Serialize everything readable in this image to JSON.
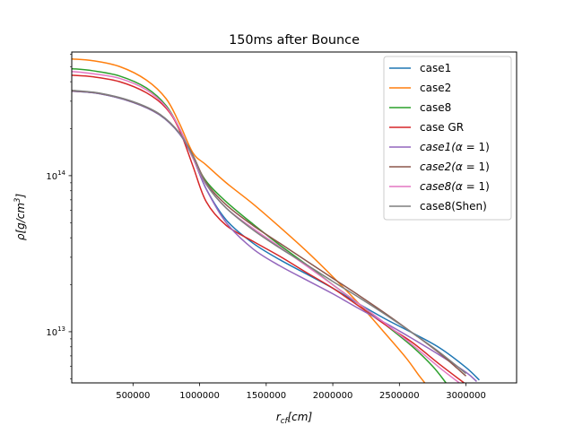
{
  "chart_data": {
    "type": "line",
    "title": "150ms after Bounce",
    "xlabel": "r_cf[cm]",
    "ylabel": "ρ[g/cm³]",
    "xlim": [
      40000,
      3380000
    ],
    "ylim": [
      4700000000000.0,
      620000000000000.0
    ],
    "yscale": "log",
    "grid": false,
    "legend_position": "top-right",
    "x_ticks": [
      {
        "value": 500000,
        "label": "500000"
      },
      {
        "value": 1000000,
        "label": "1000000"
      },
      {
        "value": 1500000,
        "label": "1500000"
      },
      {
        "value": 2000000,
        "label": "2000000"
      },
      {
        "value": 2500000,
        "label": "2500000"
      },
      {
        "value": 3000000,
        "label": "3000000"
      }
    ],
    "y_ticks": [
      {
        "value": 10000000000000.0,
        "base": "10",
        "exp": "13"
      },
      {
        "value": 100000000000000.0,
        "base": "10",
        "exp": "14"
      }
    ],
    "series": [
      {
        "name": "case1",
        "color": "#1f77b4",
        "x": [
          40000,
          250000,
          500000,
          700000,
          850000,
          950000,
          1050000,
          1200000,
          1400000,
          1600000,
          1800000,
          2000000,
          2200000,
          2400000,
          2600000,
          2800000,
          3000000,
          3100000
        ],
        "y": [
          348000000000000.0,
          335000000000000.0,
          295000000000000.0,
          245000000000000.0,
          185000000000000.0,
          130000000000000.0,
          82000000000000.0,
          52000000000000.0,
          37000000000000.0,
          29000000000000.0,
          23500000000000.0,
          19000000000000.0,
          15000000000000.0,
          12000000000000.0,
          9800000000000.0,
          7900000000000.0,
          5900000000000.0,
          4900000000000.0
        ]
      },
      {
        "name": "case2",
        "color": "#ff7f0e",
        "x": [
          40000,
          200000,
          400000,
          600000,
          750000,
          850000,
          950000,
          1050000,
          1200000,
          1400000,
          1600000,
          1800000,
          2000000,
          2200000,
          2400000,
          2550000,
          2650000,
          2700000
        ],
        "y": [
          560000000000000.0,
          545000000000000.0,
          500000000000000.0,
          410000000000000.0,
          310000000000000.0,
          215000000000000.0,
          140000000000000.0,
          117000000000000.0,
          90000000000000.0,
          66000000000000.0,
          47000000000000.0,
          33000000000000.0,
          22500000000000.0,
          15000000000000.0,
          9600000000000.0,
          6800000000000.0,
          5200000000000.0,
          4600000000000.0
        ]
      },
      {
        "name": "case8",
        "color": "#2ca02c",
        "x": [
          40000,
          200000,
          400000,
          600000,
          750000,
          850000,
          950000,
          1050000,
          1200000,
          1400000,
          1600000,
          1800000,
          2000000,
          2200000,
          2400000,
          2600000,
          2750000,
          2850000
        ],
        "y": [
          485000000000000.0,
          470000000000000.0,
          435000000000000.0,
          365000000000000.0,
          280000000000000.0,
          200000000000000.0,
          130000000000000.0,
          92000000000000.0,
          68000000000000.0,
          49000000000000.0,
          36000000000000.0,
          27000000000000.0,
          20000000000000.0,
          15000000000000.0,
          11000000000000.0,
          8000000000000.0,
          6000000000000.0,
          4700000000000.0
        ]
      },
      {
        "name": "case GR",
        "color": "#d62728",
        "x": [
          40000,
          200000,
          400000,
          600000,
          750000,
          850000,
          950000,
          1050000,
          1200000,
          1400000,
          1600000,
          1800000,
          2000000,
          2200000,
          2400000,
          2600000,
          2800000,
          3000000
        ],
        "y": [
          440000000000000.0,
          430000000000000.0,
          400000000000000.0,
          340000000000000.0,
          270000000000000.0,
          195000000000000.0,
          115000000000000.0,
          68000000000000.0,
          48000000000000.0,
          38000000000000.0,
          30500000000000.0,
          24000000000000.0,
          19000000000000.0,
          14500000000000.0,
          11000000000000.0,
          8500000000000.0,
          6200000000000.0,
          4600000000000.0
        ]
      },
      {
        "name": "case1(α = 1)",
        "tex": {
          "base": "case1(",
          "symbol": "α",
          "tail": " = 1)"
        },
        "color": "#9467bd",
        "x": [
          40000,
          250000,
          500000,
          700000,
          850000,
          950000,
          1050000,
          1200000,
          1400000,
          1600000,
          1800000,
          2000000,
          2200000,
          2400000,
          2600000,
          2800000,
          3000000,
          3080000
        ],
        "y": [
          348000000000000.0,
          335000000000000.0,
          295000000000000.0,
          245000000000000.0,
          185000000000000.0,
          130000000000000.0,
          82000000000000.0,
          50000000000000.0,
          34000000000000.0,
          26500000000000.0,
          21500000000000.0,
          17500000000000.0,
          14000000000000.0,
          11300000000000.0,
          9000000000000.0,
          7100000000000.0,
          5500000000000.0,
          4800000000000.0
        ]
      },
      {
        "name": "case2(α = 1)",
        "tex": {
          "base": "case2(",
          "symbol": "α",
          "tail": " = 1)"
        },
        "color": "#8c564b",
        "x": [
          40000,
          250000,
          500000,
          700000,
          850000,
          950000,
          1050000,
          1200000,
          1400000,
          1600000,
          1800000,
          2000000,
          2200000,
          2400000,
          2600000,
          2800000,
          3000000
        ],
        "y": [
          350000000000000.0,
          337000000000000.0,
          297000000000000.0,
          247000000000000.0,
          187000000000000.0,
          135000000000000.0,
          90000000000000.0,
          65000000000000.0,
          48000000000000.0,
          37000000000000.0,
          28500000000000.0,
          22000000000000.0,
          17000000000000.0,
          13000000000000.0,
          9800000000000.0,
          7300000000000.0,
          5200000000000.0
        ]
      },
      {
        "name": "case8(α = 1)",
        "tex": {
          "base": "case8(",
          "symbol": "α",
          "tail": " = 1)"
        },
        "color": "#e377c2",
        "x": [
          40000,
          200000,
          400000,
          600000,
          750000,
          850000,
          950000,
          1050000,
          1200000,
          1400000,
          1600000,
          1800000,
          2000000,
          2200000,
          2400000,
          2600000,
          2800000,
          2950000
        ],
        "y": [
          465000000000000.0,
          450000000000000.0,
          420000000000000.0,
          355000000000000.0,
          275000000000000.0,
          200000000000000.0,
          130000000000000.0,
          88000000000000.0,
          62000000000000.0,
          46000000000000.0,
          35000000000000.0,
          26500000000000.0,
          20000000000000.0,
          15000000000000.0,
          11200000000000.0,
          8200000000000.0,
          5900000000000.0,
          4700000000000.0
        ]
      },
      {
        "name": "case8(Shen)",
        "color": "#7f7f7f",
        "x": [
          40000,
          250000,
          500000,
          700000,
          850000,
          950000,
          1050000,
          1200000,
          1400000,
          1600000,
          1800000,
          2000000,
          2200000,
          2400000,
          2600000,
          2800000,
          3000000
        ],
        "y": [
          352000000000000.0,
          338000000000000.0,
          298000000000000.0,
          248000000000000.0,
          187000000000000.0,
          133000000000000.0,
          88000000000000.0,
          62000000000000.0,
          45000000000000.0,
          34500000000000.0,
          27000000000000.0,
          21000000000000.0,
          16500000000000.0,
          12800000000000.0,
          9800000000000.0,
          7400000000000.0,
          5400000000000.0
        ]
      }
    ]
  }
}
